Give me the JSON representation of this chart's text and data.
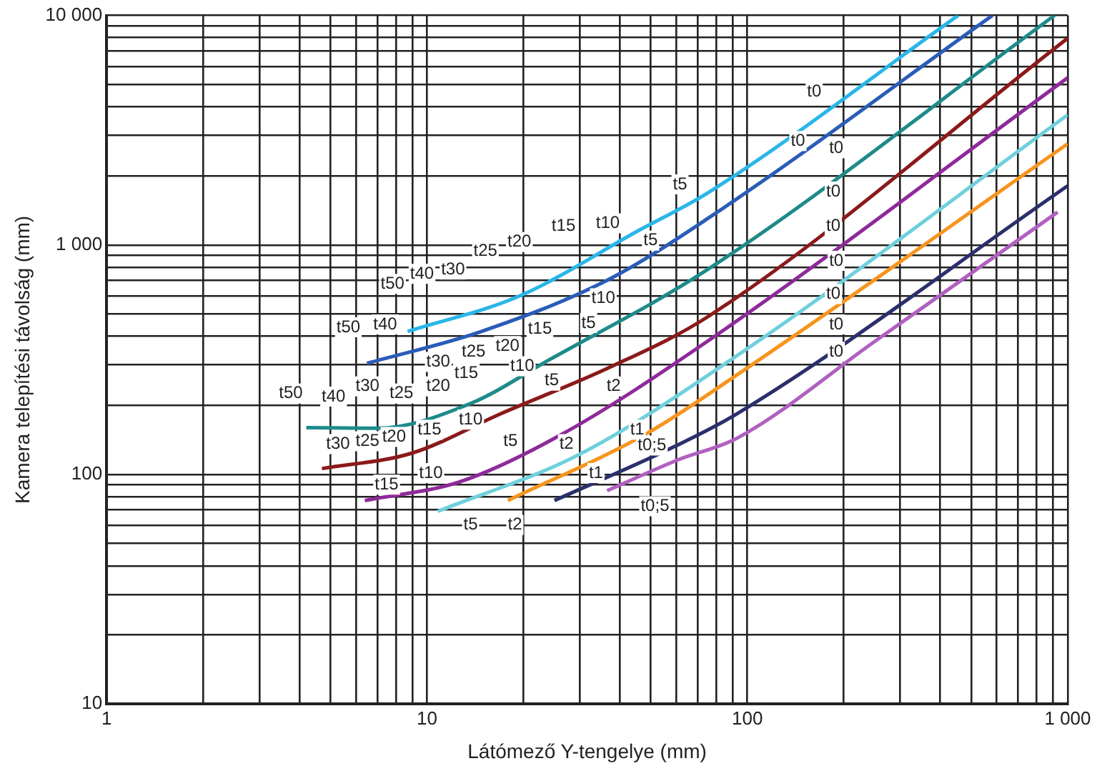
{
  "chart_data": {
    "type": "line",
    "xlabel": "Látómező Y-tengelye (mm)",
    "ylabel": "Kamera telepítési távolság (mm)",
    "log": "xy",
    "grid": true,
    "legend": false,
    "marker": "none",
    "line_style": "solid",
    "xlim": [
      1,
      1000
    ],
    "ylim": [
      10,
      10000
    ],
    "xticks": [
      1,
      {
        "value": 2,
        "label": null
      },
      {
        "value": 3,
        "label": null
      },
      {
        "value": 4,
        "label": null
      },
      {
        "value": 5,
        "label": null
      },
      {
        "value": 6,
        "label": null
      },
      {
        "value": 7,
        "label": null
      },
      {
        "value": 8,
        "label": null
      },
      {
        "value": 9,
        "label": null
      },
      10,
      {
        "value": 20,
        "label": null
      },
      {
        "value": 30,
        "label": null
      },
      {
        "value": 40,
        "label": null
      },
      {
        "value": 50,
        "label": null
      },
      {
        "value": 60,
        "label": null
      },
      {
        "value": 70,
        "label": null
      },
      {
        "value": 80,
        "label": null
      },
      {
        "value": 90,
        "label": null
      },
      100,
      {
        "value": 200,
        "label": null
      },
      {
        "value": 300,
        "label": null
      },
      {
        "value": 400,
        "label": null
      },
      {
        "value": 500,
        "label": null
      },
      {
        "value": 600,
        "label": null
      },
      {
        "value": 700,
        "label": null
      },
      {
        "value": 800,
        "label": null
      },
      {
        "value": 900,
        "label": null
      },
      {
        "value": 1000,
        "label": "1 000"
      }
    ],
    "yticks": [
      10,
      {
        "value": 20,
        "label": null
      },
      {
        "value": 30,
        "label": null
      },
      {
        "value": 40,
        "label": null
      },
      {
        "value": 50,
        "label": null
      },
      {
        "value": 60,
        "label": null
      },
      {
        "value": 70,
        "label": null
      },
      {
        "value": 80,
        "label": null
      },
      {
        "value": 90,
        "label": null
      },
      100,
      {
        "value": 200,
        "label": null
      },
      {
        "value": 300,
        "label": null
      },
      {
        "value": 400,
        "label": null
      },
      {
        "value": 500,
        "label": null
      },
      {
        "value": 600,
        "label": null
      },
      {
        "value": 700,
        "label": null
      },
      {
        "value": 800,
        "label": null
      },
      {
        "value": 900,
        "label": null
      },
      {
        "value": 1000,
        "label": "1 000"
      },
      {
        "value": 2000,
        "label": null
      },
      {
        "value": 3000,
        "label": null
      },
      {
        "value": 4000,
        "label": null
      },
      {
        "value": 5000,
        "label": null
      },
      {
        "value": 6000,
        "label": null
      },
      {
        "value": 7000,
        "label": null
      },
      {
        "value": 8000,
        "label": null
      },
      {
        "value": 9000,
        "label": null
      },
      {
        "value": 10000,
        "label": "10 000"
      }
    ],
    "series": [
      {
        "color": "#29b6e8",
        "x": [
          8.7,
          19.5,
          45.5,
          75,
          455
        ],
        "values": [
          420,
          600,
          1150,
          1680,
          10000
        ]
      },
      {
        "color": "#2a5cb8",
        "x": [
          6.5,
          14.8,
          36.8,
          75,
          582
        ],
        "values": [
          305,
          420,
          705,
          1300,
          10000
        ]
      },
      {
        "color": "#1f8a8a",
        "x": [
          4.2,
          7,
          13.7,
          24,
          75,
          910
        ],
        "values": [
          160,
          159,
          204,
          315,
          780,
          10000
        ]
      },
      {
        "color": "#8b1a1a",
        "x": [
          4.7,
          9,
          17,
          37,
          75,
          1000
        ],
        "values": [
          106,
          124,
          184,
          292,
          485,
          7950
        ]
      },
      {
        "color": "#8e2a9a",
        "x": [
          6.4,
          12.7,
          26,
          75,
          1000
        ],
        "values": [
          77,
          93,
          148,
          380,
          5350
        ]
      },
      {
        "color": "#6fd0dc",
        "x": [
          10.8,
          29.8,
          93,
          1000
        ],
        "values": [
          69,
          122,
          330,
          3690
        ]
      },
      {
        "color": "#f7941d",
        "x": [
          17.9,
          49,
          93,
          1000
        ],
        "values": [
          77,
          152,
          272,
          2760
        ]
      },
      {
        "color": "#2b2f6b",
        "x": [
          25,
          59,
          93,
          1000
        ],
        "values": [
          77,
          132,
          184,
          1810
        ]
      },
      {
        "color": "#b060c0",
        "x": [
          36.5,
          61,
          93,
          250,
          930
        ],
        "values": [
          85,
          116,
          144,
          380,
          1390
        ]
      }
    ],
    "annotations": [
      "t0",
      "t0",
      "t0",
      "t0",
      "t0",
      "t0",
      "t0",
      "t0",
      "t0",
      "t5",
      "t10",
      "t15",
      "t5",
      "t20",
      "t25",
      "t30",
      "t40",
      "t50",
      "t10",
      "t5",
      "t50",
      "t40",
      "t15",
      "t20",
      "t25",
      "t30",
      "t15",
      "t10",
      "t50",
      "t40",
      "t30",
      "t25",
      "t20",
      "t5",
      "t2",
      "t10",
      "t15",
      "t30",
      "t25",
      "t20",
      "t5",
      "t2",
      "t1",
      "t0;5",
      "t10",
      "t15",
      "t1",
      "t5",
      "t2",
      "t0;5"
    ]
  }
}
